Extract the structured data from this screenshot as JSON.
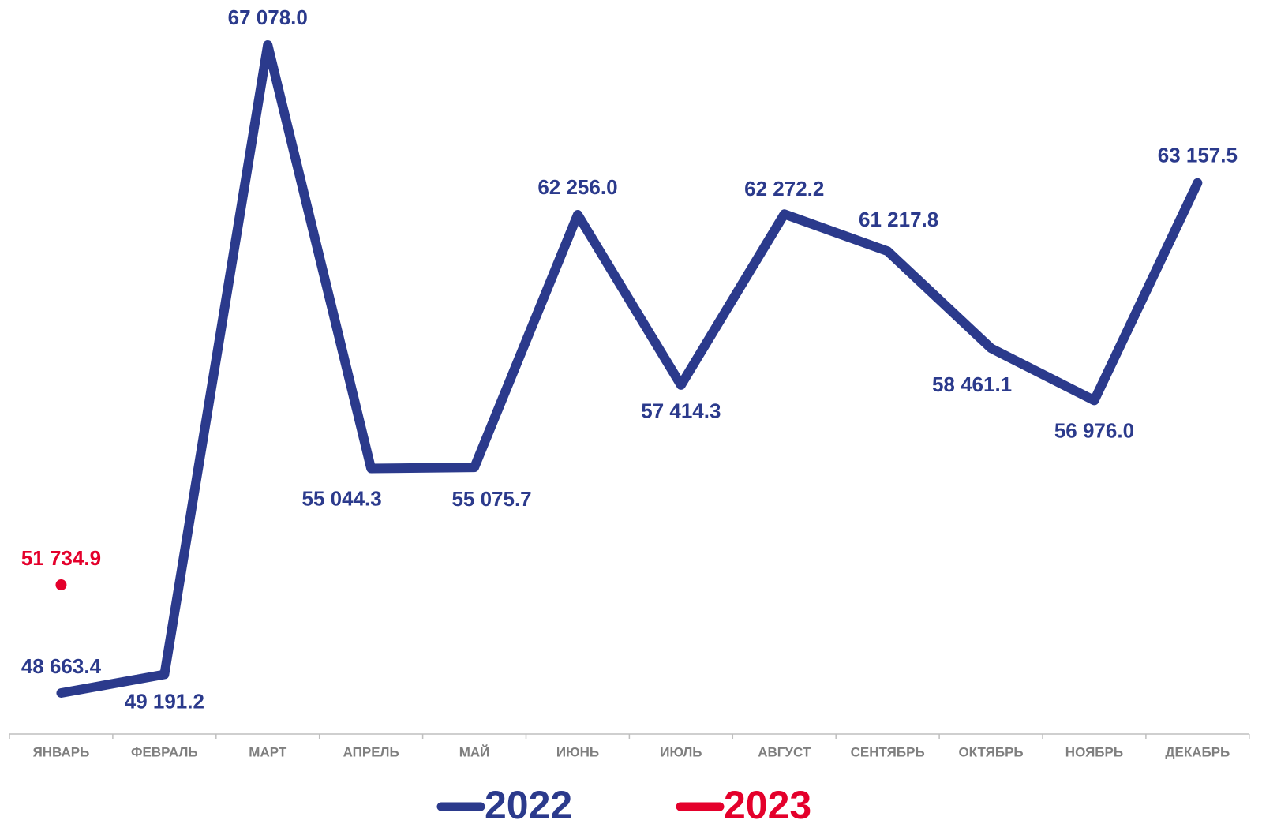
{
  "chart_data": {
    "type": "line",
    "categories": [
      "ЯНВАРЬ",
      "ФЕВРАЛЬ",
      "МАРТ",
      "АПРЕЛЬ",
      "МАЙ",
      "ИЮНЬ",
      "ИЮЛЬ",
      "АВГУСТ",
      "СЕНТЯБРЬ",
      "ОКТЯБРЬ",
      "НОЯБРЬ",
      "ДЕКАБРЬ"
    ],
    "series": [
      {
        "name": "2022",
        "color": "#2b3a8c",
        "values": [
          48663.4,
          49191.2,
          67078.0,
          55044.3,
          55075.7,
          62256.0,
          57414.3,
          62272.2,
          61217.8,
          58461.1,
          56976.0,
          63157.5
        ],
        "value_labels": [
          "48 663.4",
          "49 191.2",
          "67 078.0",
          "55 044.3",
          "55 075.7",
          "62 256.0",
          "57 414.3",
          "62 272.2",
          "61 217.8",
          "58 461.1",
          "56 976.0",
          "63 157.5"
        ]
      },
      {
        "name": "2023",
        "color": "#e4002b",
        "values": [
          51734.9,
          null,
          null,
          null,
          null,
          null,
          null,
          null,
          null,
          null,
          null,
          null
        ],
        "value_labels": [
          "51 734.9",
          null,
          null,
          null,
          null,
          null,
          null,
          null,
          null,
          null,
          null,
          null
        ]
      }
    ],
    "legend": "bottom"
  }
}
